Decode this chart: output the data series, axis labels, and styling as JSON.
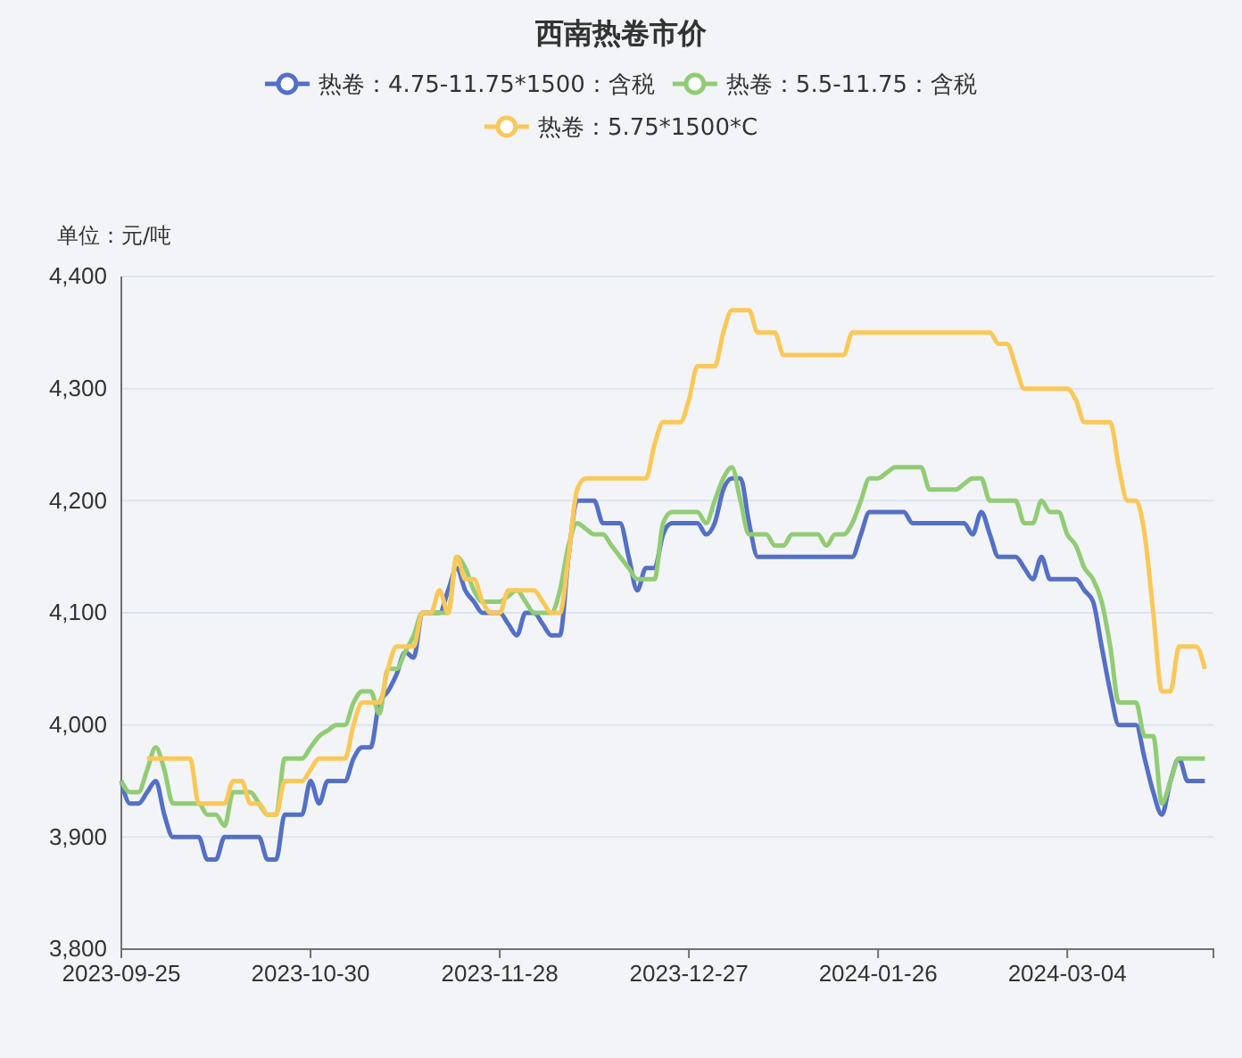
{
  "chart_data": {
    "type": "line",
    "title": "西南热卷市价",
    "ylabel": "单位：元/吨",
    "categories": [
      "2023-09-25",
      null,
      null,
      null,
      null,
      null,
      null,
      null,
      null,
      null,
      null,
      null,
      null,
      null,
      null,
      null,
      null,
      null,
      null,
      null,
      null,
      null,
      "2023-10-30",
      null,
      null,
      null,
      null,
      null,
      null,
      null,
      null,
      null,
      null,
      null,
      null,
      null,
      null,
      null,
      null,
      null,
      null,
      null,
      null,
      null,
      "2023-11-28",
      null,
      null,
      null,
      null,
      null,
      null,
      null,
      null,
      null,
      null,
      null,
      null,
      null,
      null,
      null,
      null,
      null,
      null,
      null,
      null,
      null,
      "2023-12-27",
      null,
      null,
      null,
      null,
      null,
      null,
      null,
      null,
      null,
      null,
      null,
      null,
      null,
      null,
      null,
      null,
      null,
      null,
      null,
      null,
      null,
      "2024-01-26",
      null,
      null,
      null,
      null,
      null,
      null,
      null,
      null,
      null,
      null,
      null,
      null,
      null,
      null,
      null,
      null,
      null,
      null,
      null,
      null,
      null,
      "2024-03-04",
      null,
      null,
      null,
      null,
      null,
      null,
      null,
      null,
      null,
      null,
      null,
      null,
      null,
      null,
      null,
      null,
      null
    ],
    "ylim": [
      3800,
      4400
    ],
    "yticks": [
      {
        "value": 3800,
        "label": "3,800"
      },
      {
        "value": 3900,
        "label": "3,900"
      },
      {
        "value": 4000,
        "label": "4,000"
      },
      {
        "value": 4100,
        "label": "4,100"
      },
      {
        "value": 4200,
        "label": "4,200"
      },
      {
        "value": 4300,
        "label": "4,300"
      },
      {
        "value": 4400,
        "label": "4,400"
      }
    ],
    "grid": "y",
    "legend": "top",
    "marker": "none",
    "line_style": "solid",
    "series": [
      {
        "name": "热卷：4.75-11.75*1500：含税",
        "color": "#5470c6",
        "values": [
          3950,
          3930,
          3930,
          3940,
          3950,
          3920,
          3900,
          3900,
          3900,
          3900,
          3880,
          3880,
          3900,
          3900,
          3900,
          3900,
          3900,
          3880,
          3880,
          3920,
          3920,
          3920,
          3950,
          3930,
          3950,
          3950,
          3950,
          3970,
          3980,
          3980,
          4020,
          4030,
          4045,
          4065,
          4060,
          4100,
          4100,
          4100,
          4120,
          4140,
          4120,
          4110,
          4100,
          4100,
          4100,
          4090,
          4080,
          4100,
          4100,
          4090,
          4080,
          4080,
          4150,
          4200,
          4200,
          4200,
          4180,
          4180,
          4180,
          4150,
          4120,
          4140,
          4140,
          4170,
          4180,
          4180,
          4180,
          4180,
          4170,
          4180,
          4210,
          4220,
          4220,
          4180,
          4150,
          4150,
          4150,
          4150,
          4150,
          4150,
          4150,
          4150,
          4150,
          4150,
          4150,
          4150,
          4170,
          4190,
          4190,
          4190,
          4190,
          4190,
          4180,
          4180,
          4180,
          4180,
          4180,
          4180,
          4180,
          4170,
          4190,
          4170,
          4150,
          4150,
          4150,
          4140,
          4130,
          4150,
          4130,
          4130,
          4130,
          4130,
          4120,
          4110,
          4070,
          4030,
          4000,
          4000,
          4000,
          3970,
          3940,
          3920,
          3950,
          3970,
          3950,
          3950,
          3950,
          null
        ]
      },
      {
        "name": "热卷：5.5-11.75：含税",
        "color": "#91cc75",
        "values": [
          3950,
          3940,
          3940,
          3960,
          3980,
          3960,
          3930,
          3930,
          3930,
          3930,
          3920,
          3920,
          3910,
          3940,
          3940,
          3940,
          3930,
          3920,
          3920,
          3970,
          3970,
          3970,
          3980,
          3990,
          3995,
          4000,
          4000,
          4020,
          4030,
          4030,
          4010,
          4050,
          4050,
          4065,
          4080,
          4100,
          4100,
          4100,
          4100,
          4150,
          4140,
          4120,
          4110,
          4110,
          4110,
          4115,
          4120,
          4110,
          4100,
          4100,
          4100,
          4120,
          4160,
          4180,
          4175,
          4170,
          4170,
          4160,
          4150,
          4140,
          4130,
          4130,
          4130,
          4180,
          4190,
          4190,
          4190,
          4190,
          4180,
          4200,
          4220,
          4230,
          4200,
          4170,
          4170,
          4170,
          4160,
          4160,
          4170,
          4170,
          4170,
          4170,
          4160,
          4170,
          4170,
          4180,
          4200,
          4220,
          4220,
          4225,
          4230,
          4230,
          4230,
          4230,
          4210,
          4210,
          4210,
          4210,
          4215,
          4220,
          4220,
          4200,
          4200,
          4200,
          4200,
          4180,
          4180,
          4200,
          4190,
          4190,
          4170,
          4160,
          4140,
          4130,
          4110,
          4070,
          4020,
          4020,
          4020,
          3990,
          3990,
          3930,
          3950,
          3970,
          3970,
          3970,
          3970,
          null
        ]
      },
      {
        "name": "热卷：5.75*1500*C",
        "color": "#fac858",
        "values": [
          null,
          null,
          null,
          3970,
          3970,
          3970,
          3970,
          3970,
          3970,
          3930,
          3930,
          3930,
          3930,
          3950,
          3950,
          3930,
          3930,
          3920,
          3920,
          3950,
          3950,
          3950,
          3960,
          3970,
          3970,
          3970,
          3970,
          4000,
          4020,
          4020,
          4020,
          4050,
          4070,
          4070,
          4070,
          4100,
          4100,
          4120,
          4100,
          4150,
          4130,
          4130,
          4110,
          4100,
          4100,
          4120,
          4120,
          4120,
          4120,
          4110,
          4100,
          4100,
          4150,
          4210,
          4220,
          4220,
          4220,
          4220,
          4220,
          4220,
          4220,
          4220,
          4250,
          4270,
          4270,
          4270,
          4290,
          4320,
          4320,
          4320,
          4350,
          4370,
          4370,
          4370,
          4350,
          4350,
          4350,
          4330,
          4330,
          4330,
          4330,
          4330,
          4330,
          4330,
          4330,
          4350,
          4350,
          4350,
          4350,
          4350,
          4350,
          4350,
          4350,
          4350,
          4350,
          4350,
          4350,
          4350,
          4350,
          4350,
          4350,
          4350,
          4340,
          4340,
          4320,
          4300,
          4300,
          4300,
          4300,
          4300,
          4300,
          4290,
          4270,
          4270,
          4270,
          4270,
          4230,
          4200,
          4200,
          4170,
          4100,
          4030,
          4030,
          4070,
          4070,
          4070,
          4050,
          null
        ]
      }
    ]
  }
}
